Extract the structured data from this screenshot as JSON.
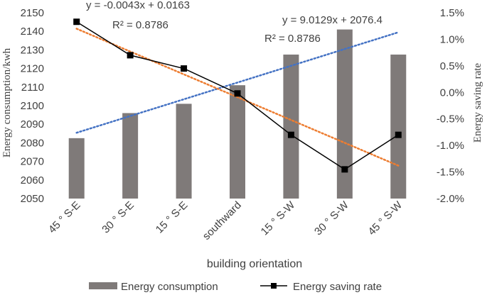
{
  "chart_data": {
    "type": "bar",
    "categories": [
      "45 ° S-E",
      "30 ° S-E",
      "15 ° S-E",
      "southward",
      "15 ° S-W",
      "30 ° S-W",
      "45 ° S-W"
    ],
    "series": [
      {
        "name": "Energy consumption",
        "type": "bar",
        "axis": "left",
        "color": "#7f7a79",
        "values": [
          2082.5,
          2096,
          2101,
          2111,
          2127.5,
          2141,
          2127.5
        ]
      },
      {
        "name": "Energy saving rate",
        "type": "line",
        "axis": "right",
        "color": "#000000",
        "values": [
          1.33,
          0.7,
          0.45,
          -0.02,
          -0.8,
          -1.45,
          -0.8
        ]
      }
    ],
    "trendlines": [
      {
        "axis": "left",
        "color": "#4472c4",
        "equation": "y = 9.0129x + 2076.4",
        "r2": "R² = 0.8786",
        "slope": 9.0129,
        "intercept": 2076.4
      },
      {
        "axis": "right",
        "color": "#ed7d31",
        "equation": "y = -0.0043x + 0.0163",
        "r2": "R² = 0.8786",
        "slope": -0.43,
        "intercept": 1.63
      }
    ],
    "xlabel": "building orientation",
    "ylabel": "Energy consumption/kwh",
    "ylabel_right": "Energy saving rate",
    "ylim": [
      2050,
      2150
    ],
    "ylim_right": [
      -2.0,
      1.5
    ],
    "yticks": [
      2050,
      2060,
      2070,
      2080,
      2090,
      2100,
      2110,
      2120,
      2130,
      2140,
      2150
    ],
    "yticks_right": [
      "-2.0%",
      "-1.5%",
      "-1.0%",
      "-0.5%",
      "0.0%",
      "0.5%",
      "1.0%",
      "1.5%"
    ],
    "legend": [
      "Energy consumption",
      "Energy saving rate"
    ],
    "legend_position": "bottom"
  }
}
